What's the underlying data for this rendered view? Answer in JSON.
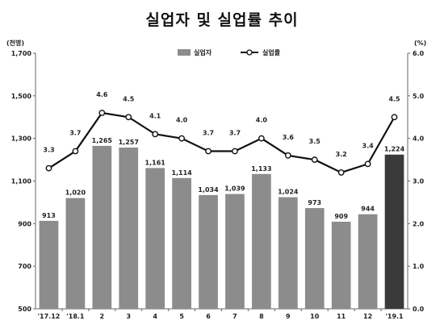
{
  "title": "실업자 및 실업률 추이",
  "colors": {
    "bar": "#8c8c8c",
    "bar_highlight": "#3a3a3a",
    "line": "#111111",
    "marker_fill": "#ffffff",
    "axis": "#666666"
  },
  "chart_data": {
    "type": "bar",
    "title": "실업자 및 실업률 추이",
    "categories": [
      "'17.12",
      "'18.1",
      "2",
      "3",
      "4",
      "5",
      "6",
      "7",
      "8",
      "9",
      "10",
      "11",
      "12",
      "'19.1"
    ],
    "series": [
      {
        "name": "실업자",
        "type": "bar",
        "axis": "left",
        "values": [
          913,
          1020,
          1265,
          1257,
          1161,
          1114,
          1034,
          1039,
          1133,
          1024,
          973,
          909,
          944,
          1224
        ],
        "labels": [
          "913",
          "1,020",
          "1,265",
          "1,257",
          "1,161",
          "1,114",
          "1,034",
          "1,039",
          "1,133",
          "1,024",
          "973",
          "909",
          "944",
          "1,224"
        ],
        "highlight_index": 13
      },
      {
        "name": "실업률",
        "type": "line",
        "axis": "right",
        "values": [
          3.3,
          3.7,
          4.6,
          4.5,
          4.1,
          4.0,
          3.7,
          3.7,
          4.0,
          3.6,
          3.5,
          3.2,
          3.4,
          4.5
        ],
        "labels": [
          "3.3",
          "3.7",
          "4.6",
          "4.5",
          "4.1",
          "4.0",
          "3.7",
          "3.7",
          "4.0",
          "3.6",
          "3.5",
          "3.2",
          "3.4",
          "4.5"
        ]
      }
    ],
    "left_axis": {
      "unit": "(천명)",
      "ylim": [
        500,
        1700
      ],
      "ticks": [
        500,
        700,
        900,
        1100,
        1300,
        1500,
        1700
      ],
      "tick_labels": [
        "500",
        "700",
        "900",
        "1,100",
        "1,300",
        "1,500",
        "1,700"
      ]
    },
    "right_axis": {
      "unit": "(%)",
      "ylim": [
        0.0,
        6.0
      ],
      "ticks": [
        0,
        1,
        2,
        3,
        4,
        5,
        6
      ],
      "tick_labels": [
        "0.0",
        "1.0",
        "2.0",
        "3.0",
        "4.0",
        "5.0",
        "6.0"
      ]
    },
    "grid": false,
    "legend": {
      "placement": "top-center",
      "items": [
        {
          "label": "실업자",
          "kind": "bar"
        },
        {
          "label": "실업률",
          "kind": "line-marker"
        }
      ]
    }
  }
}
